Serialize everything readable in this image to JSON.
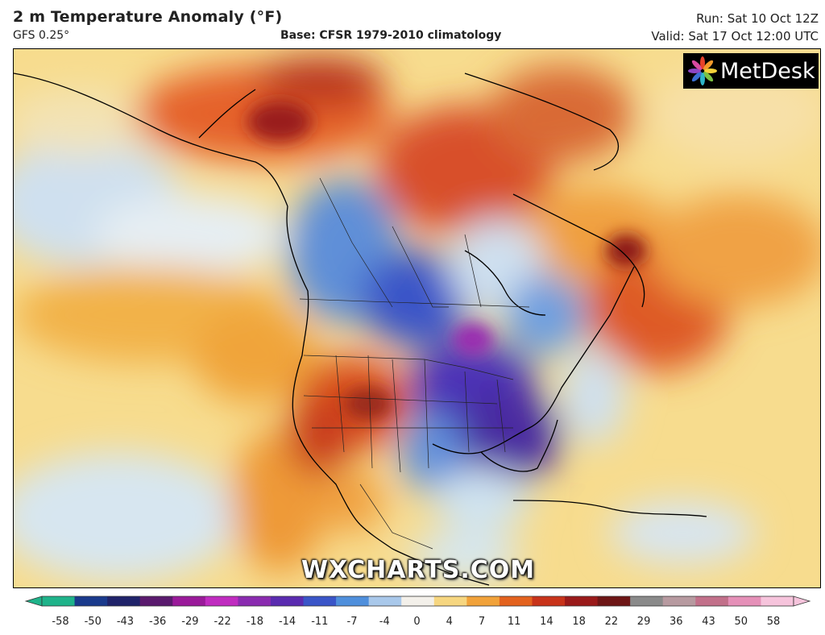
{
  "header": {
    "title": "2 m Temperature Anomaly (°F)",
    "model": "GFS 0.25°",
    "base": "Base: CFSR 1979-2010 climatology",
    "run": "Run: Sat 10 Oct 12Z",
    "valid": "Valid: Sat 17 Oct 12:00 UTC"
  },
  "logo": {
    "text": "MetDesk",
    "icon": "flower-logo-icon"
  },
  "watermark": "WXCHARTS.COM",
  "colorbar": {
    "ticks": [
      "-58",
      "-50",
      "-43",
      "-36",
      "-29",
      "-22",
      "-18",
      "-14",
      "-11",
      "-7",
      "-4",
      "0",
      "4",
      "7",
      "11",
      "14",
      "18",
      "22",
      "29",
      "36",
      "43",
      "50",
      "58"
    ],
    "colors": [
      "#1fb38a",
      "#1a3a8c",
      "#20236a",
      "#5a1a6e",
      "#9a1a9a",
      "#c02cc0",
      "#8a2bb0",
      "#5a2bb0",
      "#3a55c8",
      "#4f8fdc",
      "#a9c8ea",
      "#f3f0ea",
      "#f6d680",
      "#f1a23a",
      "#e3621e",
      "#c8331a",
      "#9a1a1a",
      "#6e1616",
      "#8a8a8a",
      "#b79aa0",
      "#c2708a",
      "#e590b8",
      "#f6c4dc"
    ]
  }
}
